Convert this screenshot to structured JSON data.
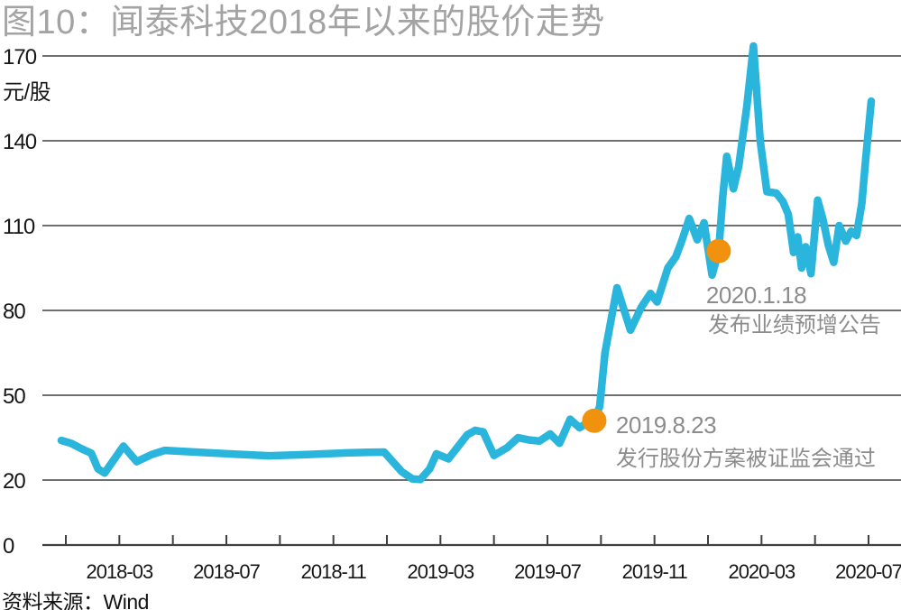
{
  "chart_data": {
    "type": "line",
    "title": "图10：闻泰科技2018年以来的股价走势",
    "ylabel": "元/股",
    "source": "资料来源：Wind",
    "y_ticks": [
      0,
      20,
      50,
      80,
      110,
      140,
      170
    ],
    "ylim": [
      0,
      175
    ],
    "y_axis_note": "axis gap compressed between 0 and 20",
    "x_tick_labels": [
      "2018-03",
      "2018-07",
      "2018-11",
      "2019-03",
      "2019-07",
      "2019-11",
      "2020-03",
      "2020-07"
    ],
    "x_unit": "months since 2018-01",
    "x_domain_dates": [
      "2018-01",
      "2020-07"
    ],
    "grid": "horizontal",
    "legend": "none",
    "series": [
      {
        "name": "闻泰科技股价",
        "points": [
          [
            -0.17,
            34
          ],
          [
            0.2,
            33
          ],
          [
            0.6,
            31
          ],
          [
            0.95,
            29.5
          ],
          [
            1.2,
            24
          ],
          [
            1.45,
            22.5
          ],
          [
            2.15,
            32
          ],
          [
            2.65,
            26.5
          ],
          [
            3.2,
            29
          ],
          [
            3.7,
            30.5
          ],
          [
            5,
            29.8
          ],
          [
            6.3,
            29.2
          ],
          [
            7.6,
            28.6
          ],
          [
            9,
            29
          ],
          [
            10.5,
            29.6
          ],
          [
            11.3,
            29.8
          ],
          [
            11.9,
            29.9
          ],
          [
            12.55,
            23
          ],
          [
            12.95,
            20.4
          ],
          [
            13.25,
            20.2
          ],
          [
            13.6,
            24
          ],
          [
            13.85,
            29.3
          ],
          [
            14.3,
            27.5
          ],
          [
            15,
            36
          ],
          [
            15.3,
            37.6
          ],
          [
            15.6,
            37
          ],
          [
            16,
            28.7
          ],
          [
            16.5,
            31.5
          ],
          [
            16.9,
            35
          ],
          [
            17.3,
            34.2
          ],
          [
            17.7,
            33.8
          ],
          [
            18.1,
            36.3
          ],
          [
            18.45,
            33
          ],
          [
            18.85,
            41.5
          ],
          [
            19.2,
            38.5
          ],
          [
            19.5,
            40.3
          ],
          [
            19.75,
            41
          ],
          [
            19.95,
            46
          ],
          [
            20.15,
            65
          ],
          [
            20.6,
            88
          ],
          [
            21.1,
            73
          ],
          [
            21.5,
            81
          ],
          [
            21.85,
            86
          ],
          [
            22.1,
            83
          ],
          [
            22.5,
            95
          ],
          [
            22.8,
            99
          ],
          [
            23,
            104
          ],
          [
            23.3,
            112.5
          ],
          [
            23.6,
            105
          ],
          [
            23.85,
            111
          ],
          [
            24.15,
            92.5
          ],
          [
            24.4,
            101
          ],
          [
            24.55,
            120
          ],
          [
            24.7,
            134.5
          ],
          [
            24.95,
            123
          ],
          [
            25.15,
            131
          ],
          [
            25.45,
            152
          ],
          [
            25.7,
            173.5
          ],
          [
            25.95,
            140
          ],
          [
            26.2,
            122
          ],
          [
            26.55,
            121.5
          ],
          [
            26.8,
            118.5
          ],
          [
            27,
            114
          ],
          [
            27.2,
            100.5
          ],
          [
            27.35,
            106
          ],
          [
            27.5,
            95
          ],
          [
            27.65,
            102.5
          ],
          [
            27.85,
            93
          ],
          [
            28.1,
            119
          ],
          [
            28.3,
            112
          ],
          [
            28.5,
            103
          ],
          [
            28.7,
            97
          ],
          [
            28.9,
            110
          ],
          [
            29.15,
            104.5
          ],
          [
            29.35,
            108
          ],
          [
            29.55,
            106.5
          ],
          [
            29.75,
            118
          ],
          [
            29.9,
            134
          ],
          [
            30.1,
            154
          ]
        ]
      }
    ],
    "annotations": [
      {
        "m": 19.75,
        "v": 41,
        "date": "2019.8.23",
        "label": "发行股份方案被证监会通过"
      },
      {
        "m": 24.4,
        "v": 101,
        "date": "2020.1.18",
        "label": "发布业绩预增公告"
      }
    ],
    "colors": {
      "line": "#2ab5dc",
      "marker": "#f0920e",
      "title": "#a3a3a3",
      "annotation": "#8c8c8c",
      "axis_text": "#161616",
      "grid": "#404040"
    }
  }
}
